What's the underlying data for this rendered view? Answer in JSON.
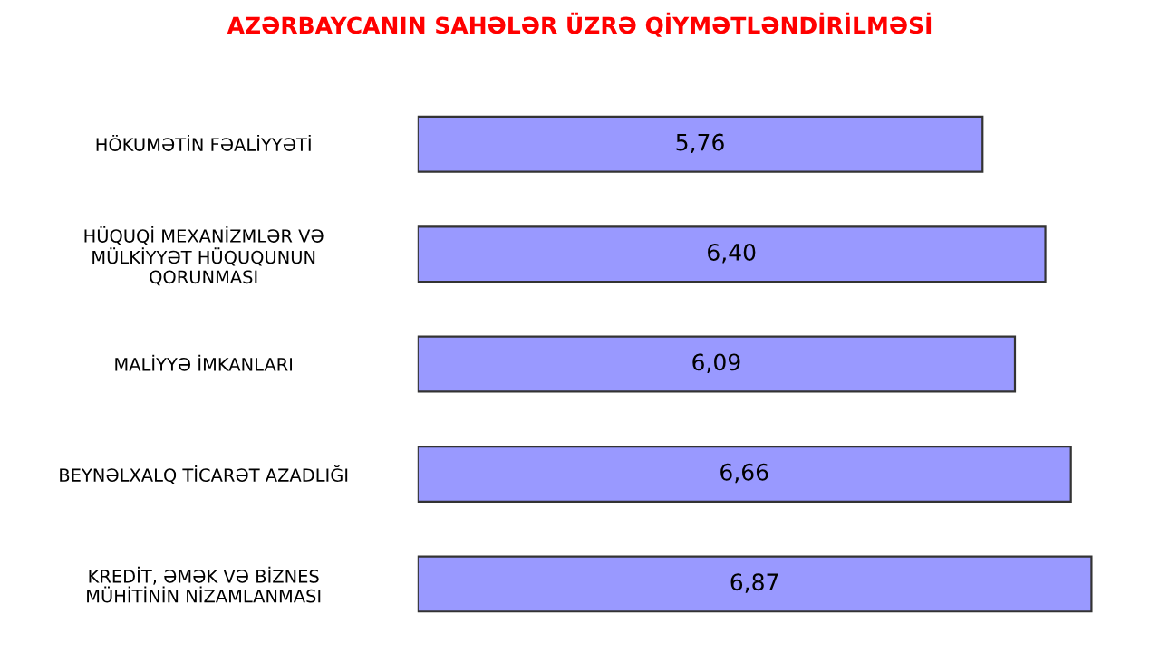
{
  "chart_data": {
    "type": "bar",
    "orientation": "horizontal",
    "title": "AZƏRBAYCANIN SAHƏLƏR ÜZRƏ QİYMƏTLƏNDİRİLMƏSİ",
    "categories": [
      "HÖKUMƏTİN FƏALİYYƏTİ",
      "HÜQUQİ MEXANİZMLƏR VƏ\nMÜLKİYYƏT HÜQUQUNUN\nQORUNMASI",
      "MALİYYƏ İMKANLARI",
      "BEYNƏLXALQ TİCARƏT AZADLIĞI",
      "KREDİT, ƏMƏK VƏ BİZNES\nMÜHİTİNİN NİZAMLANMASI"
    ],
    "values": [
      5.76,
      6.4,
      6.09,
      6.66,
      6.87
    ],
    "value_labels": [
      "5,76",
      "6,40",
      "6,09",
      "6,66",
      "6,87"
    ],
    "color": "#9999ff",
    "tick_labels": "y",
    "grid": false,
    "legend": false
  }
}
